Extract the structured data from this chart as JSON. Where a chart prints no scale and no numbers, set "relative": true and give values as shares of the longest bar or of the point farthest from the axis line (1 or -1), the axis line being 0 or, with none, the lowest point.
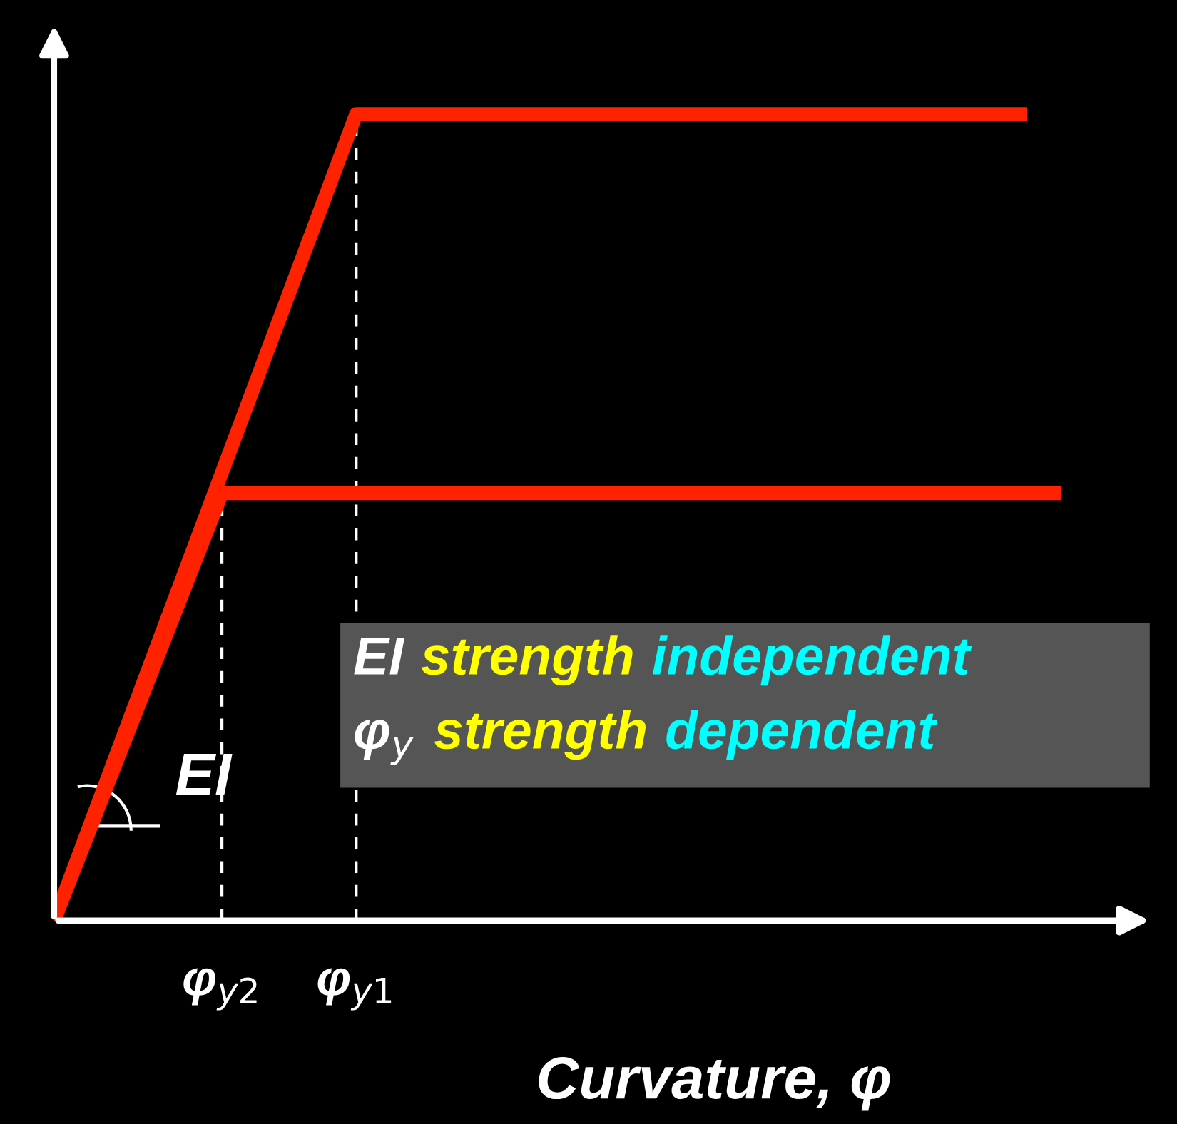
{
  "chart_data": {
    "type": "line",
    "relative": true,
    "xlabel": "Curvature, φ",
    "grid": false,
    "legend": false,
    "marker": "none",
    "categories": [
      null,
      null,
      null,
      null,
      null,
      "φ$_{y2}$",
      null,
      null,
      null,
      "φ$_{y1}$",
      null,
      null,
      null,
      null,
      null,
      null,
      null,
      null,
      null,
      null,
      null,
      null,
      null,
      null,
      null,
      null,
      null,
      null,
      null,
      null,
      null
    ],
    "series": [
      {
        "values": [
          0,
          null,
          null,
          null,
          null,
          null,
          null,
          null,
          null,
          1,
          null,
          null,
          null,
          null,
          null,
          null,
          null,
          null,
          null,
          null,
          null,
          null,
          null,
          null,
          null,
          null,
          null,
          null,
          null,
          1,
          null
        ],
        "color": "#ff2200"
      },
      {
        "values": [
          0,
          null,
          null,
          null,
          null,
          0.53,
          null,
          null,
          null,
          null,
          null,
          null,
          null,
          null,
          null,
          null,
          null,
          null,
          null,
          null,
          null,
          null,
          null,
          null,
          null,
          null,
          null,
          null,
          null,
          null,
          0.53
        ],
        "color": "#ff2200"
      }
    ],
    "ref_lines": [
      {
        "axis": "x",
        "value": "φ$_{y2}$",
        "color": "#ffffff",
        "line_style": "dashed"
      },
      {
        "axis": "x",
        "value": "φ$_{y1}$",
        "color": "#ffffff",
        "line_style": "dashed"
      }
    ],
    "annotations": [
      "EI",
      "EI strength independent",
      "φ$_{y}$ strength dependent"
    ]
  }
}
